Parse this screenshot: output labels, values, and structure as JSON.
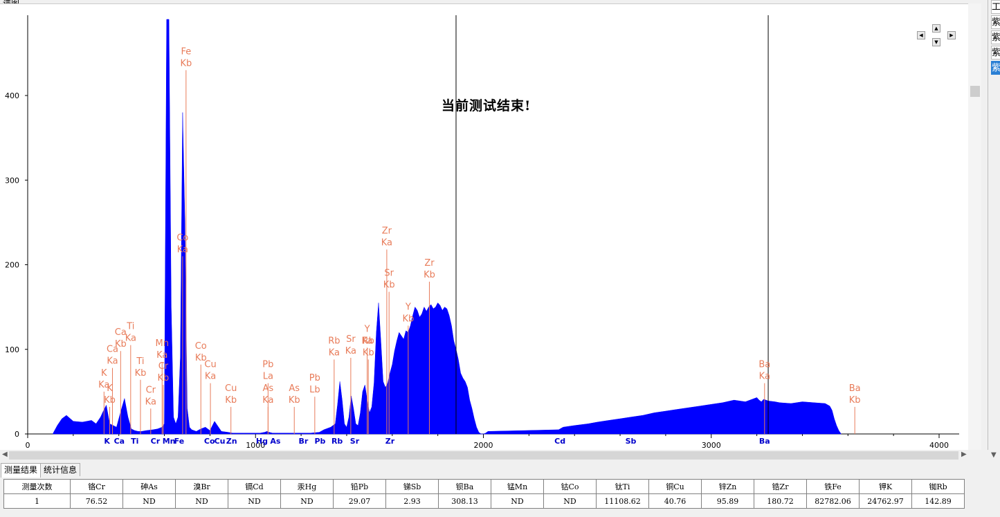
{
  "panel": {
    "title": "谱图"
  },
  "status_message": "当前测试结束!",
  "right_strip": {
    "top_label": "工",
    "tabs": [
      "紫",
      "紫",
      "紫",
      "紫"
    ]
  },
  "tabs": [
    {
      "label": "测量结果",
      "active": true
    },
    {
      "label": "统计信息",
      "active": false
    }
  ],
  "results": {
    "headers": [
      "测量次数",
      "铬Cr",
      "砷As",
      "溴Br",
      "镉Cd",
      "汞Hg",
      "铅Pb",
      "锑Sb",
      "钡Ba",
      "锰Mn",
      "钴Co",
      "钛Ti",
      "铜Cu",
      "锌Zn",
      "锆Zr",
      "铁Fe",
      "钾K",
      "铷Rb"
    ],
    "rows": [
      [
        "1",
        "76.52",
        "ND",
        "ND",
        "ND",
        "ND",
        "29.07",
        "2.93",
        "308.13",
        "ND",
        "ND",
        "11108.62",
        "40.76",
        "95.89",
        "180.72",
        "82782.06",
        "24762.97",
        "142.89"
      ]
    ]
  },
  "chart_data": {
    "type": "area",
    "title": "",
    "xlabel": "",
    "ylabel": "",
    "xlim": [
      0,
      4100
    ],
    "ylim": [
      0,
      490
    ],
    "x_ticks": [
      0,
      1000,
      2000,
      3000,
      4000
    ],
    "y_ticks": [
      0,
      100,
      200,
      300,
      400
    ],
    "fill_color": "#0000ff",
    "spectrum": {
      "x": [
        110,
        130,
        150,
        170,
        200,
        240,
        280,
        300,
        320,
        330,
        345,
        360,
        375,
        390,
        410,
        425,
        440,
        455,
        470,
        485,
        500,
        520,
        550,
        570,
        590,
        600,
        610,
        620,
        630,
        640,
        650,
        660,
        670,
        680,
        690,
        700,
        710,
        720,
        740,
        760,
        780,
        800,
        820,
        850,
        880,
        900,
        920,
        950,
        1000,
        1020,
        1040,
        1050,
        1060,
        1075,
        1090,
        1100,
        1150,
        1200,
        1240,
        1280,
        1300,
        1330,
        1350,
        1360,
        1370,
        1380,
        1390,
        1400,
        1410,
        1420,
        1430,
        1440,
        1450,
        1460,
        1470,
        1480,
        1490,
        1500,
        1510,
        1520,
        1530,
        1540,
        1550,
        1560,
        1570,
        1580,
        1590,
        1600,
        1610,
        1620,
        1630,
        1640,
        1650,
        1660,
        1670,
        1680,
        1690,
        1700,
        1710,
        1720,
        1730,
        1740,
        1750,
        1760,
        1770,
        1780,
        1790,
        1800,
        1810,
        1820,
        1830,
        1840,
        1850,
        1860,
        1870,
        1880,
        1890,
        1900,
        1910,
        1920,
        1930,
        1940,
        1950,
        1960,
        1970,
        1980,
        1990,
        2000,
        2010,
        2020,
        2330,
        2350,
        2400,
        2460,
        2500,
        2550,
        2600,
        2650,
        2700,
        2750,
        2800,
        2850,
        2900,
        2950,
        3000,
        3050,
        3100,
        3150,
        3200,
        3210,
        3220,
        3230,
        3250,
        3280,
        3300,
        3350,
        3400,
        3450,
        3500,
        3520,
        3530,
        3540,
        3550,
        3560,
        3570
      ],
      "y": [
        0,
        10,
        18,
        22,
        15,
        14,
        16,
        12,
        20,
        26,
        34,
        12,
        10,
        8,
        28,
        42,
        20,
        6,
        4,
        3,
        3,
        4,
        5,
        6,
        8,
        12,
        490,
        490,
        150,
        20,
        12,
        20,
        90,
        380,
        250,
        30,
        8,
        5,
        3,
        6,
        8,
        4,
        15,
        3,
        2,
        1,
        1,
        1,
        1,
        1,
        2,
        3,
        2,
        1,
        1,
        1,
        1,
        1,
        1,
        2,
        5,
        8,
        12,
        35,
        62,
        40,
        12,
        8,
        20,
        45,
        30,
        12,
        10,
        25,
        50,
        58,
        40,
        25,
        32,
        60,
        120,
        155,
        110,
        62,
        55,
        60,
        72,
        82,
        98,
        110,
        120,
        116,
        112,
        122,
        120,
        128,
        140,
        150,
        146,
        138,
        142,
        150,
        145,
        150,
        153,
        148,
        150,
        155,
        152,
        146,
        150,
        148,
        140,
        128,
        110,
        100,
        88,
        72,
        66,
        62,
        55,
        40,
        30,
        18,
        8,
        2,
        0,
        0,
        1,
        3,
        5,
        8,
        10,
        12,
        14,
        16,
        18,
        20,
        22,
        25,
        27,
        29,
        31,
        33,
        35,
        37,
        40,
        38,
        43,
        40,
        38,
        41,
        39,
        38,
        37,
        36,
        38,
        37,
        36,
        33,
        28,
        18,
        10,
        4,
        0
      ]
    },
    "peak_lines": [
      {
        "x": 1880,
        "label": ""
      },
      {
        "x": 3250,
        "label": ""
      }
    ],
    "element_markers": [
      {
        "x": 348,
        "label": "K"
      },
      {
        "x": 402,
        "label": "Ca"
      },
      {
        "x": 470,
        "label": "Ti"
      },
      {
        "x": 560,
        "label": "Cr"
      },
      {
        "x": 620,
        "label": "Mn"
      },
      {
        "x": 665,
        "label": "Fe"
      },
      {
        "x": 798,
        "label": "Co"
      },
      {
        "x": 843,
        "label": "Cu"
      },
      {
        "x": 895,
        "label": "Zn"
      },
      {
        "x": 1028,
        "label": "Hg"
      },
      {
        "x": 1087,
        "label": "As"
      },
      {
        "x": 1210,
        "label": "Br"
      },
      {
        "x": 1283,
        "label": "Pb"
      },
      {
        "x": 1358,
        "label": "Rb"
      },
      {
        "x": 1435,
        "label": "Sr"
      },
      {
        "x": 1590,
        "label": "Zr"
      },
      {
        "x": 2336,
        "label": "Cd"
      },
      {
        "x": 2647,
        "label": "Sb"
      },
      {
        "x": 3234,
        "label": "Ba"
      }
    ],
    "peak_labels": [
      {
        "x": 335,
        "y": 50,
        "label": [
          "K",
          "Ka"
        ]
      },
      {
        "x": 360,
        "y": 32,
        "label": [
          "K",
          "Kb"
        ]
      },
      {
        "x": 372,
        "y": 78,
        "label": [
          "Ca",
          "Ka"
        ]
      },
      {
        "x": 408,
        "y": 98,
        "label": [
          "Ca",
          "Kb"
        ]
      },
      {
        "x": 452,
        "y": 105,
        "label": [
          "Ti",
          "Ka"
        ]
      },
      {
        "x": 495,
        "y": 64,
        "label": [
          "Ti",
          "Kb"
        ]
      },
      {
        "x": 540,
        "y": 30,
        "label": [
          "Cr",
          "Ka"
        ]
      },
      {
        "x": 590,
        "y": 85,
        "label": [
          "Mn",
          "Ka"
        ]
      },
      {
        "x": 595,
        "y": 58,
        "label": [
          "Cr",
          "Kb"
        ]
      },
      {
        "x": 695,
        "y": 430,
        "label": [
          "Fe",
          "Kb"
        ]
      },
      {
        "x": 680,
        "y": 210,
        "label": [
          "Co",
          "Ka"
        ]
      },
      {
        "x": 760,
        "y": 82,
        "label": [
          "Co",
          "Kb"
        ]
      },
      {
        "x": 802,
        "y": 60,
        "label": [
          "Cu",
          "Ka"
        ]
      },
      {
        "x": 892,
        "y": 32,
        "label": [
          "Cu",
          "Kb"
        ]
      },
      {
        "x": 1055,
        "y": 60,
        "label": [
          "Pb",
          "La"
        ]
      },
      {
        "x": 1055,
        "y": 32,
        "label": [
          "As",
          "Ka"
        ]
      },
      {
        "x": 1170,
        "y": 32,
        "label": [
          "As",
          "Kb"
        ]
      },
      {
        "x": 1260,
        "y": 44,
        "label": [
          "Pb",
          "Lb"
        ]
      },
      {
        "x": 1345,
        "y": 88,
        "label": [
          "Rb",
          "Ka"
        ]
      },
      {
        "x": 1418,
        "y": 90,
        "label": [
          "Sr",
          "Ka"
        ]
      },
      {
        "x": 1490,
        "y": 102,
        "label": [
          "Y",
          "Ka"
        ]
      },
      {
        "x": 1495,
        "y": 88,
        "label": [
          "Rb",
          "Kb"
        ]
      },
      {
        "x": 1576,
        "y": 218,
        "label": [
          "Zr",
          "Ka"
        ]
      },
      {
        "x": 1586,
        "y": 168,
        "label": [
          "Sr",
          "Kb"
        ]
      },
      {
        "x": 1670,
        "y": 128,
        "label": [
          "Y",
          "Kb"
        ]
      },
      {
        "x": 1763,
        "y": 180,
        "label": [
          "Zr",
          "Kb"
        ]
      },
      {
        "x": 3234,
        "y": 60,
        "label": [
          "Ba",
          "Ka"
        ]
      },
      {
        "x": 3630,
        "y": 32,
        "label": [
          "Ba",
          "Kb"
        ]
      }
    ]
  }
}
